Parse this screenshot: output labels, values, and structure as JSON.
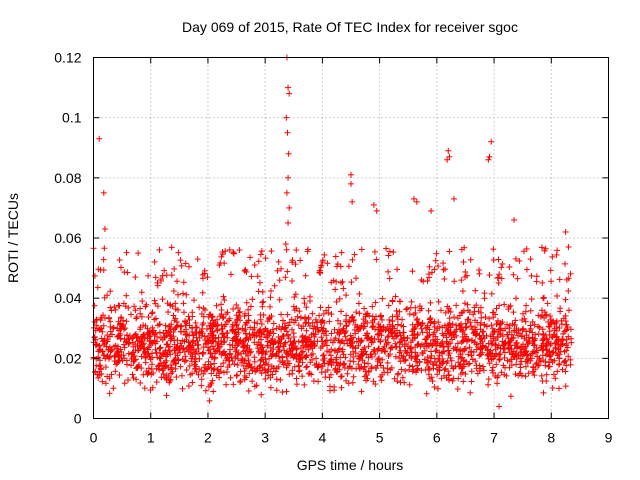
{
  "chart_data": {
    "type": "scatter",
    "title": "Day 069 of 2015, Rate Of TEC Index for receiver sgoc",
    "xlabel": "GPS time / hours",
    "ylabel": "ROTI / TECUs",
    "xlim": [
      0,
      9
    ],
    "ylim": [
      0,
      0.12
    ],
    "x_ticks": [
      "0",
      "1",
      "2",
      "3",
      "4",
      "5",
      "6",
      "7",
      "8",
      "9"
    ],
    "y_ticks": [
      "0",
      "0.02",
      "0.04",
      "0.06",
      "0.08",
      "0.1",
      "0.12"
    ],
    "grid": true,
    "marker": "+",
    "series_color": "#ff0000",
    "data_extent_x": [
      0,
      8.35
    ],
    "baseline_band": [
      0.005,
      0.045
    ],
    "outliers": [
      {
        "x": 0.1,
        "y": 0.093
      },
      {
        "x": 0.18,
        "y": 0.075
      },
      {
        "x": 0.2,
        "y": 0.063
      },
      {
        "x": 2.2,
        "y": 0.051
      },
      {
        "x": 2.55,
        "y": 0.056
      },
      {
        "x": 3.38,
        "y": 0.12
      },
      {
        "x": 3.4,
        "y": 0.11
      },
      {
        "x": 3.42,
        "y": 0.108
      },
      {
        "x": 3.37,
        "y": 0.1
      },
      {
        "x": 3.39,
        "y": 0.095
      },
      {
        "x": 3.41,
        "y": 0.088
      },
      {
        "x": 3.4,
        "y": 0.08
      },
      {
        "x": 3.38,
        "y": 0.075
      },
      {
        "x": 3.42,
        "y": 0.07
      },
      {
        "x": 3.4,
        "y": 0.065
      },
      {
        "x": 3.36,
        "y": 0.058
      },
      {
        "x": 4.5,
        "y": 0.081
      },
      {
        "x": 4.5,
        "y": 0.078
      },
      {
        "x": 4.52,
        "y": 0.072
      },
      {
        "x": 4.9,
        "y": 0.071
      },
      {
        "x": 4.95,
        "y": 0.069
      },
      {
        "x": 5.6,
        "y": 0.073
      },
      {
        "x": 5.65,
        "y": 0.072
      },
      {
        "x": 5.9,
        "y": 0.069
      },
      {
        "x": 6.2,
        "y": 0.089
      },
      {
        "x": 6.22,
        "y": 0.087
      },
      {
        "x": 6.18,
        "y": 0.086
      },
      {
        "x": 6.3,
        "y": 0.073
      },
      {
        "x": 6.95,
        "y": 0.092
      },
      {
        "x": 6.92,
        "y": 0.087
      },
      {
        "x": 6.9,
        "y": 0.086
      },
      {
        "x": 7.35,
        "y": 0.066
      },
      {
        "x": 8.25,
        "y": 0.062
      },
      {
        "x": 8.3,
        "y": 0.057
      }
    ]
  }
}
